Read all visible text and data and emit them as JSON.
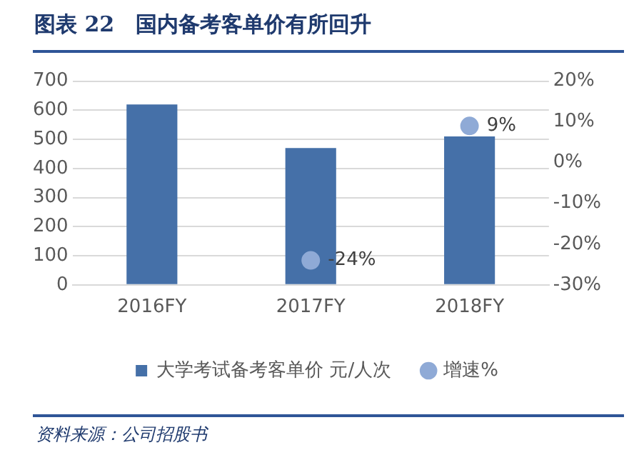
{
  "chart_data": {
    "type": "bar",
    "title": "图表 22　国内备考客单价有所回升",
    "categories": [
      "2016FY",
      "2017FY",
      "2018FY"
    ],
    "series": [
      {
        "name": "大学考试备考客单价 元/人次",
        "color": "#4570a8",
        "values": [
          620,
          470,
          510
        ]
      },
      {
        "name": "增速%",
        "type": "scatter",
        "axis": "y2",
        "marker": "circle",
        "color": "#8faad6",
        "x": [
          "2017FY",
          "2018FY"
        ],
        "values": [
          -24,
          9
        ],
        "value_labels": [
          "-24%",
          "9%"
        ]
      }
    ],
    "ylim": [
      0,
      700
    ],
    "yticks": [
      0,
      100,
      200,
      300,
      400,
      500,
      600,
      700
    ],
    "y2lim": [
      -30,
      20
    ],
    "y2ticks": [
      {
        "value": -30,
        "label": "-30%"
      },
      {
        "value": -20,
        "label": "-20%"
      },
      {
        "value": -10,
        "label": "-10%"
      },
      {
        "value": 0,
        "label": "0%"
      },
      {
        "value": 10,
        "label": "10%"
      },
      {
        "value": 20,
        "label": "20%"
      }
    ],
    "grid": "y",
    "legend": "bottom",
    "annotations": [
      "资料来源：公司招股书"
    ]
  }
}
